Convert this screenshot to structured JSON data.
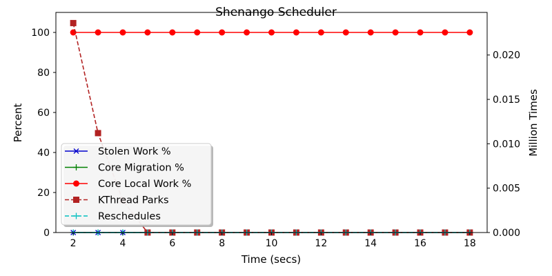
{
  "chart_data": {
    "type": "line",
    "title": "Shenango Scheduler",
    "xlabel": "Time (secs)",
    "ylabel_left": "Percent",
    "ylabel_right": "Million Times",
    "x": [
      2,
      3,
      4,
      5,
      6,
      7,
      8,
      9,
      10,
      11,
      12,
      13,
      14,
      15,
      16,
      17,
      18
    ],
    "xlim": [
      1.3,
      18.7
    ],
    "ylim_left": [
      0,
      110
    ],
    "ylim_right": [
      0,
      0.0248
    ],
    "x_ticks": [
      "2",
      "4",
      "6",
      "8",
      "10",
      "12",
      "14",
      "16",
      "18"
    ],
    "y_left_ticks": [
      "0",
      "20",
      "40",
      "60",
      "80",
      "100"
    ],
    "y_right_ticks": [
      "0.000",
      "0.005",
      "0.010",
      "0.015",
      "0.020"
    ],
    "grid": false,
    "legend_position": "lower-left",
    "series": [
      {
        "name": "Stolen Work %",
        "axis": "left",
        "color": "#0000cc",
        "linestyle": "solid",
        "marker": "x",
        "values": [
          0,
          0,
          0,
          0,
          0,
          0,
          0,
          0,
          0,
          0,
          0,
          0,
          0,
          0,
          0,
          0,
          0
        ]
      },
      {
        "name": "Core Migration %",
        "axis": "left",
        "color": "#008000",
        "linestyle": "solid",
        "marker": "+",
        "values": [
          0,
          0,
          0,
          0,
          0,
          0,
          0,
          0,
          0,
          0,
          0,
          0,
          0,
          0,
          0,
          0,
          0
        ]
      },
      {
        "name": "Core Local Work %",
        "axis": "left",
        "color": "#ff0000",
        "linestyle": "solid",
        "marker": "circle",
        "values": [
          100,
          100,
          100,
          100,
          100,
          100,
          100,
          100,
          100,
          100,
          100,
          100,
          100,
          100,
          100,
          100,
          100
        ]
      },
      {
        "name": "KThread Parks",
        "axis": "right",
        "color": "#b22222",
        "linestyle": "dashed",
        "marker": "square",
        "values": [
          0.0236,
          0.0112,
          0.0036,
          0,
          0,
          0,
          0,
          0,
          0,
          0,
          0,
          0,
          0,
          0,
          0,
          0,
          0
        ]
      },
      {
        "name": "Reschedules",
        "axis": "right",
        "color": "#00bfbf",
        "linestyle": "dashed",
        "marker": "+",
        "values": [
          0,
          0,
          0,
          0,
          0,
          0,
          0,
          0,
          0,
          0,
          0,
          0,
          0,
          0,
          0,
          0,
          0
        ]
      }
    ]
  }
}
